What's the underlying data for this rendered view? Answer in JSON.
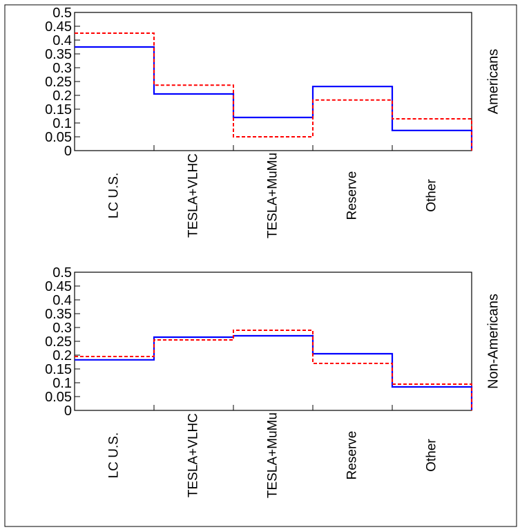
{
  "colors": {
    "solid": "#0000ff",
    "dashed": "#ff0000",
    "axis": "#000000"
  },
  "chart_data": [
    {
      "type": "histogram",
      "side_label": "Americans",
      "categories": [
        "LC U.S.",
        "TESLA+VLHC",
        "TESLA+MuMu",
        "Reserve",
        "Other"
      ],
      "ylim": [
        0,
        0.5
      ],
      "yticks": [
        "0",
        "0.05",
        "0.1",
        "0.15",
        "0.2",
        "0.25",
        "0.3",
        "0.35",
        "0.4",
        "0.45",
        "0.5"
      ],
      "grid": false,
      "series": [
        {
          "style": "solid",
          "values": [
            0.375,
            0.205,
            0.12,
            0.232,
            0.073
          ]
        },
        {
          "style": "dashed",
          "values": [
            0.425,
            0.237,
            0.05,
            0.183,
            0.115
          ]
        }
      ]
    },
    {
      "type": "histogram",
      "side_label": "Non-Americans",
      "categories": [
        "LC U.S.",
        "TESLA+VLHC",
        "TESLA+MuMu",
        "Reserve",
        "Other"
      ],
      "ylim": [
        0,
        0.5
      ],
      "yticks": [
        "0",
        "0.05",
        "0.1",
        "0.15",
        "0.2",
        "0.25",
        "0.3",
        "0.35",
        "0.4",
        "0.45",
        "0.5"
      ],
      "grid": false,
      "series": [
        {
          "style": "solid",
          "values": [
            0.183,
            0.265,
            0.27,
            0.205,
            0.085
          ]
        },
        {
          "style": "dashed",
          "values": [
            0.195,
            0.255,
            0.29,
            0.17,
            0.095
          ]
        }
      ]
    }
  ]
}
